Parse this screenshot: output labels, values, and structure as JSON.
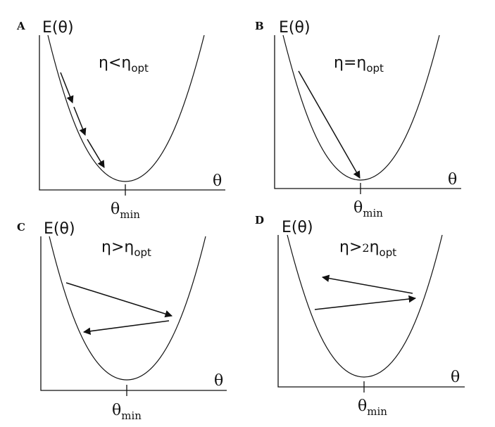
{
  "panels": [
    {
      "letter": "A",
      "ylabel": "E(θ)",
      "xlabel": "θ",
      "min_label": "θ",
      "min_sub": "min",
      "eta_main": "η<η",
      "eta_prefix": "",
      "eta_sub": "opt"
    },
    {
      "letter": "B",
      "ylabel": "E(θ)",
      "xlabel": "θ",
      "min_label": "θ",
      "min_sub": "min",
      "eta_main": "η=η",
      "eta_prefix": "",
      "eta_sub": "opt"
    },
    {
      "letter": "C",
      "ylabel": "E(θ)",
      "xlabel": "θ",
      "min_label": "θ",
      "min_sub": "min",
      "eta_main": "η>η",
      "eta_prefix": "",
      "eta_sub": "opt"
    },
    {
      "letter": "D",
      "ylabel": "E(θ)",
      "xlabel": "θ",
      "min_label": "θ",
      "min_sub": "min",
      "eta_main": "η>",
      "eta_prefix": "2",
      "eta_sub": "opt"
    }
  ]
}
